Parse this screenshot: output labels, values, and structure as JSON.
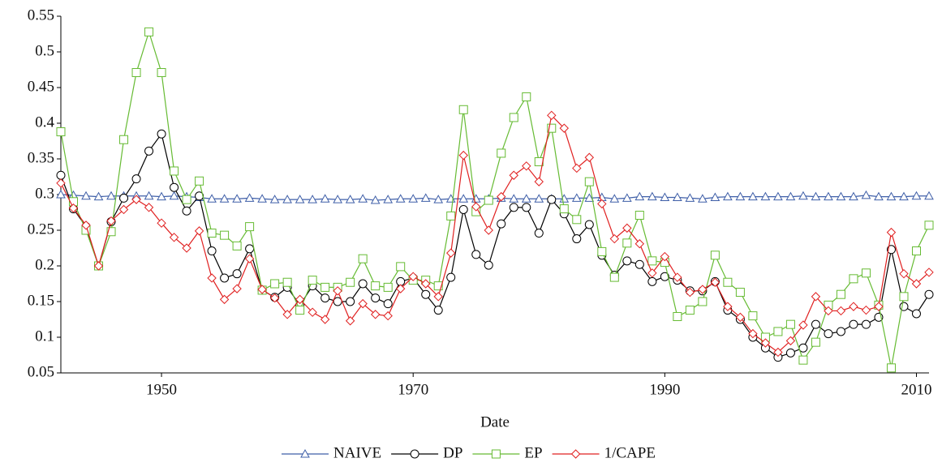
{
  "chart_data": {
    "type": "line",
    "x_label": "Date",
    "x": [
      1942,
      1943,
      1944,
      1945,
      1946,
      1947,
      1948,
      1949,
      1950,
      1951,
      1952,
      1953,
      1954,
      1955,
      1956,
      1957,
      1958,
      1959,
      1960,
      1961,
      1962,
      1963,
      1964,
      1965,
      1966,
      1967,
      1968,
      1969,
      1970,
      1971,
      1972,
      1973,
      1974,
      1975,
      1976,
      1977,
      1978,
      1979,
      1980,
      1981,
      1982,
      1983,
      1984,
      1985,
      1986,
      1987,
      1988,
      1989,
      1990,
      1991,
      1992,
      1993,
      1994,
      1995,
      1996,
      1997,
      1998,
      1999,
      2000,
      2001,
      2002,
      2003,
      2004,
      2005,
      2006,
      2007,
      2008,
      2009,
      2010,
      2011
    ],
    "xlim": [
      1942,
      2011
    ],
    "xticks": [
      1950,
      1970,
      1990,
      2010
    ],
    "ylim": [
      0.05,
      0.55
    ],
    "yticks": [
      0.05,
      0.1,
      0.15,
      0.2,
      0.25,
      0.3,
      0.35,
      0.4,
      0.45,
      0.5,
      0.55
    ],
    "legend": "bottom",
    "series": [
      {
        "name": "NAIVE",
        "color": "#3f5fa8",
        "marker": "triangle",
        "values": [
          0.3,
          0.299,
          0.298,
          0.297,
          0.298,
          0.298,
          0.298,
          0.298,
          0.297,
          0.298,
          0.297,
          0.296,
          0.294,
          0.294,
          0.294,
          0.295,
          0.294,
          0.293,
          0.293,
          0.293,
          0.293,
          0.294,
          0.293,
          0.293,
          0.294,
          0.292,
          0.293,
          0.294,
          0.294,
          0.295,
          0.293,
          0.294,
          0.294,
          0.294,
          0.294,
          0.295,
          0.294,
          0.294,
          0.294,
          0.294,
          0.294,
          0.295,
          0.295,
          0.296,
          0.294,
          0.295,
          0.297,
          0.297,
          0.296,
          0.296,
          0.295,
          0.294,
          0.296,
          0.297,
          0.297,
          0.297,
          0.297,
          0.297,
          0.297,
          0.298,
          0.297,
          0.297,
          0.297,
          0.297,
          0.299,
          0.297,
          0.297,
          0.297,
          0.298,
          0.298
        ]
      },
      {
        "name": "DP",
        "color": "#000000",
        "marker": "circle",
        "values": [
          0.327,
          0.28,
          0.255,
          0.2,
          0.262,
          0.295,
          0.322,
          0.361,
          0.385,
          0.31,
          0.277,
          0.298,
          0.221,
          0.183,
          0.189,
          0.224,
          0.166,
          0.156,
          0.17,
          0.145,
          0.172,
          0.155,
          0.15,
          0.15,
          0.175,
          0.155,
          0.147,
          0.178,
          0.183,
          0.16,
          0.138,
          0.184,
          0.279,
          0.216,
          0.201,
          0.259,
          0.282,
          0.282,
          0.246,
          0.293,
          0.273,
          0.238,
          0.258,
          0.215,
          0.187,
          0.207,
          0.202,
          0.178,
          0.185,
          0.18,
          0.165,
          0.165,
          0.178,
          0.138,
          0.125,
          0.1,
          0.085,
          0.072,
          0.078,
          0.085,
          0.118,
          0.105,
          0.108,
          0.118,
          0.118,
          0.128,
          0.223,
          0.143,
          0.133,
          0.16
        ]
      },
      {
        "name": "EP",
        "color": "#66bb33",
        "marker": "square",
        "values": [
          0.388,
          0.29,
          0.25,
          0.2,
          0.248,
          0.377,
          0.471,
          0.528,
          0.471,
          0.333,
          0.293,
          0.319,
          0.246,
          0.243,
          0.228,
          0.255,
          0.166,
          0.175,
          0.177,
          0.138,
          0.18,
          0.17,
          0.17,
          0.177,
          0.21,
          0.172,
          0.17,
          0.199,
          0.18,
          0.18,
          0.172,
          0.27,
          0.419,
          0.276,
          0.292,
          0.358,
          0.408,
          0.437,
          0.346,
          0.393,
          0.28,
          0.265,
          0.318,
          0.22,
          0.184,
          0.232,
          0.271,
          0.207,
          0.205,
          0.129,
          0.138,
          0.15,
          0.215,
          0.177,
          0.163,
          0.13,
          0.1,
          0.108,
          0.118,
          0.068,
          0.093,
          0.145,
          0.16,
          0.182,
          0.19,
          0.145,
          0.057,
          0.157,
          0.221,
          0.257
        ]
      },
      {
        "name": "1/CAPE",
        "color": "#e02020",
        "marker": "diamond",
        "values": [
          0.316,
          0.281,
          0.257,
          0.2,
          0.263,
          0.279,
          0.293,
          0.282,
          0.26,
          0.24,
          0.225,
          0.249,
          0.183,
          0.153,
          0.168,
          0.21,
          0.167,
          0.155,
          0.132,
          0.153,
          0.135,
          0.125,
          0.165,
          0.123,
          0.147,
          0.132,
          0.13,
          0.168,
          0.185,
          0.175,
          0.157,
          0.218,
          0.355,
          0.283,
          0.25,
          0.297,
          0.327,
          0.34,
          0.318,
          0.411,
          0.393,
          0.337,
          0.352,
          0.287,
          0.238,
          0.253,
          0.231,
          0.19,
          0.213,
          0.184,
          0.163,
          0.167,
          0.177,
          0.143,
          0.128,
          0.105,
          0.092,
          0.079,
          0.095,
          0.117,
          0.157,
          0.137,
          0.137,
          0.143,
          0.138,
          0.143,
          0.247,
          0.189,
          0.175,
          0.191
        ]
      }
    ]
  }
}
